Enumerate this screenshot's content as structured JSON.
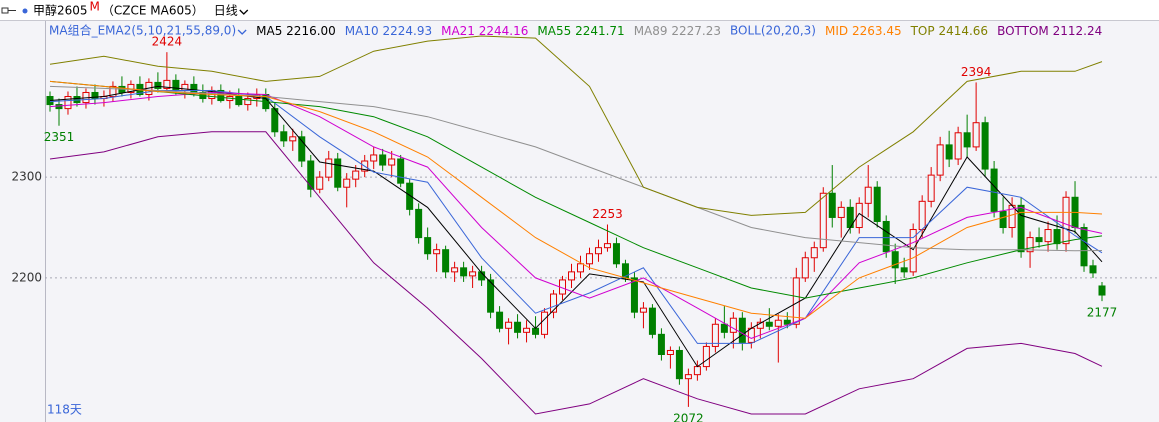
{
  "chart_data": {
    "type": "candlestick",
    "header": {
      "name": "甲醇2605",
      "mark": "M",
      "code": "（CZCE MA605）",
      "period": "日线"
    },
    "indicator_labels": [
      "MA组合_EMA2(5,10,21,55,89,0)",
      "BOLL(20,20,3)"
    ],
    "range_label": "118天",
    "ylim": [
      2059,
      2446
    ],
    "yticks": [
      2200,
      2300
    ],
    "grid": true,
    "up_color": "#e00000",
    "down_color": "#008000",
    "ohlc": [
      [
        2380,
        2385,
        2365,
        2372
      ],
      [
        2372,
        2378,
        2351,
        2368
      ],
      [
        2368,
        2385,
        2362,
        2380
      ],
      [
        2380,
        2390,
        2370,
        2374
      ],
      [
        2374,
        2388,
        2368,
        2384
      ],
      [
        2384,
        2392,
        2372,
        2378
      ],
      [
        2378,
        2386,
        2370,
        2380
      ],
      [
        2380,
        2395,
        2375,
        2390
      ],
      [
        2390,
        2400,
        2380,
        2384
      ],
      [
        2384,
        2396,
        2378,
        2392
      ],
      [
        2392,
        2400,
        2380,
        2382
      ],
      [
        2382,
        2398,
        2376,
        2394
      ],
      [
        2394,
        2404,
        2384,
        2388
      ],
      [
        2388,
        2424,
        2385,
        2396
      ],
      [
        2396,
        2402,
        2382,
        2386
      ],
      [
        2386,
        2396,
        2378,
        2392
      ],
      [
        2392,
        2400,
        2380,
        2384
      ],
      [
        2384,
        2392,
        2374,
        2378
      ],
      [
        2378,
        2390,
        2372,
        2386
      ],
      [
        2386,
        2392,
        2374,
        2376
      ],
      [
        2376,
        2386,
        2368,
        2380
      ],
      [
        2380,
        2388,
        2370,
        2372
      ],
      [
        2372,
        2384,
        2366,
        2378
      ],
      [
        2378,
        2388,
        2370,
        2382
      ],
      [
        2382,
        2388,
        2365,
        2368
      ],
      [
        2368,
        2374,
        2340,
        2345
      ],
      [
        2345,
        2352,
        2330,
        2336
      ],
      [
        2336,
        2348,
        2326,
        2340
      ],
      [
        2340,
        2346,
        2310,
        2316
      ],
      [
        2316,
        2322,
        2280,
        2288
      ],
      [
        2288,
        2306,
        2284,
        2300
      ],
      [
        2300,
        2326,
        2296,
        2318
      ],
      [
        2318,
        2324,
        2286,
        2290
      ],
      [
        2290,
        2304,
        2270,
        2298
      ],
      [
        2298,
        2312,
        2290,
        2306
      ],
      [
        2306,
        2322,
        2300,
        2316
      ],
      [
        2316,
        2330,
        2308,
        2322
      ],
      [
        2322,
        2328,
        2306,
        2312
      ],
      [
        2312,
        2326,
        2300,
        2318
      ],
      [
        2318,
        2322,
        2290,
        2294
      ],
      [
        2294,
        2298,
        2262,
        2268
      ],
      [
        2268,
        2274,
        2234,
        2240
      ],
      [
        2240,
        2250,
        2218,
        2224
      ],
      [
        2224,
        2234,
        2206,
        2228
      ],
      [
        2228,
        2232,
        2200,
        2206
      ],
      [
        2206,
        2216,
        2196,
        2210
      ],
      [
        2210,
        2216,
        2196,
        2202
      ],
      [
        2202,
        2212,
        2190,
        2206
      ],
      [
        2206,
        2212,
        2192,
        2198
      ],
      [
        2198,
        2204,
        2160,
        2166
      ],
      [
        2166,
        2172,
        2146,
        2150
      ],
      [
        2150,
        2160,
        2134,
        2156
      ],
      [
        2156,
        2164,
        2140,
        2146
      ],
      [
        2146,
        2158,
        2136,
        2150
      ],
      [
        2150,
        2162,
        2140,
        2144
      ],
      [
        2144,
        2170,
        2140,
        2166
      ],
      [
        2166,
        2188,
        2160,
        2184
      ],
      [
        2184,
        2202,
        2178,
        2198
      ],
      [
        2198,
        2214,
        2190,
        2206
      ],
      [
        2206,
        2222,
        2200,
        2214
      ],
      [
        2214,
        2230,
        2208,
        2224
      ],
      [
        2224,
        2238,
        2216,
        2230
      ],
      [
        2230,
        2253,
        2226,
        2234
      ],
      [
        2234,
        2240,
        2210,
        2214
      ],
      [
        2214,
        2218,
        2196,
        2200
      ],
      [
        2200,
        2206,
        2160,
        2166
      ],
      [
        2166,
        2176,
        2150,
        2170
      ],
      [
        2170,
        2174,
        2140,
        2144
      ],
      [
        2144,
        2150,
        2118,
        2124
      ],
      [
        2124,
        2132,
        2110,
        2128
      ],
      [
        2128,
        2132,
        2094,
        2100
      ],
      [
        2100,
        2110,
        2072,
        2104
      ],
      [
        2104,
        2118,
        2098,
        2112
      ],
      [
        2112,
        2136,
        2108,
        2132
      ],
      [
        2132,
        2160,
        2126,
        2154
      ],
      [
        2154,
        2172,
        2140,
        2146
      ],
      [
        2146,
        2166,
        2130,
        2160
      ],
      [
        2160,
        2166,
        2128,
        2136
      ],
      [
        2136,
        2156,
        2130,
        2150
      ],
      [
        2150,
        2160,
        2140,
        2156
      ],
      [
        2156,
        2170,
        2148,
        2152
      ],
      [
        2152,
        2164,
        2116,
        2158
      ],
      [
        2158,
        2166,
        2150,
        2154
      ],
      [
        2154,
        2210,
        2150,
        2200
      ],
      [
        2200,
        2226,
        2196,
        2220
      ],
      [
        2220,
        2236,
        2206,
        2230
      ],
      [
        2230,
        2290,
        2226,
        2284
      ],
      [
        2284,
        2312,
        2250,
        2260
      ],
      [
        2260,
        2276,
        2240,
        2270
      ],
      [
        2270,
        2278,
        2244,
        2250
      ],
      [
        2250,
        2280,
        2244,
        2274
      ],
      [
        2274,
        2312,
        2260,
        2290
      ],
      [
        2290,
        2296,
        2250,
        2256
      ],
      [
        2256,
        2262,
        2220,
        2226
      ],
      [
        2226,
        2234,
        2194,
        2210
      ],
      [
        2210,
        2220,
        2200,
        2206
      ],
      [
        2206,
        2254,
        2202,
        2248
      ],
      [
        2248,
        2282,
        2240,
        2276
      ],
      [
        2276,
        2310,
        2270,
        2302
      ],
      [
        2302,
        2340,
        2296,
        2332
      ],
      [
        2332,
        2346,
        2310,
        2318
      ],
      [
        2318,
        2350,
        2312,
        2344
      ],
      [
        2344,
        2362,
        2320,
        2330
      ],
      [
        2330,
        2394,
        2326,
        2354
      ],
      [
        2354,
        2360,
        2300,
        2308
      ],
      [
        2308,
        2316,
        2260,
        2266
      ],
      [
        2266,
        2280,
        2244,
        2250
      ],
      [
        2250,
        2280,
        2240,
        2272
      ],
      [
        2272,
        2280,
        2220,
        2226
      ],
      [
        2226,
        2246,
        2210,
        2240
      ],
      [
        2240,
        2250,
        2230,
        2236
      ],
      [
        2236,
        2256,
        2226,
        2248
      ],
      [
        2248,
        2262,
        2228,
        2234
      ],
      [
        2234,
        2286,
        2226,
        2280
      ],
      [
        2280,
        2296,
        2244,
        2250
      ],
      [
        2250,
        2254,
        2206,
        2212
      ],
      [
        2212,
        2218,
        2200,
        2205
      ],
      [
        2192,
        2196,
        2177,
        2183
      ]
    ],
    "lines": [
      {
        "name": "MA5",
        "value_label": "2216.00",
        "color": "#000000",
        "x": [
          0,
          6,
          12,
          18,
          24,
          30,
          36,
          42,
          48,
          54,
          60,
          66,
          72,
          78,
          84,
          90,
          96,
          102,
          108,
          114,
          117
        ],
        "values": [
          2376,
          2380,
          2390,
          2385,
          2378,
          2315,
          2306,
          2270,
          2205,
          2150,
          2204,
          2196,
          2112,
          2150,
          2180,
          2264,
          2228,
          2320,
          2262,
          2246,
          2216
        ]
      },
      {
        "name": "MA10",
        "value_label": "2224.93",
        "color": "#3a66d8",
        "x": [
          0,
          6,
          12,
          18,
          24,
          30,
          36,
          42,
          48,
          54,
          60,
          66,
          72,
          78,
          84,
          90,
          96,
          102,
          108,
          114,
          117
        ],
        "values": [
          2375,
          2378,
          2386,
          2386,
          2380,
          2340,
          2305,
          2295,
          2220,
          2165,
          2185,
          2210,
          2135,
          2135,
          2160,
          2240,
          2240,
          2290,
          2280,
          2242,
          2224.93
        ]
      },
      {
        "name": "MA21",
        "value_label": "2244.16",
        "color": "#d000d0",
        "x": [
          0,
          6,
          12,
          18,
          24,
          30,
          36,
          42,
          48,
          54,
          60,
          66,
          72,
          78,
          84,
          90,
          96,
          102,
          108,
          114,
          117
        ],
        "values": [
          2370,
          2374,
          2380,
          2384,
          2382,
          2360,
          2330,
          2310,
          2250,
          2200,
          2180,
          2200,
          2170,
          2140,
          2160,
          2215,
          2235,
          2260,
          2270,
          2250,
          2244.16
        ]
      },
      {
        "name": "MA55",
        "value_label": "2241.71",
        "color": "#008a00",
        "x": [
          0,
          6,
          12,
          18,
          24,
          30,
          36,
          42,
          48,
          54,
          60,
          66,
          72,
          78,
          84,
          90,
          96,
          102,
          108,
          114,
          117
        ],
        "values": [
          2395,
          2390,
          2385,
          2380,
          2375,
          2370,
          2360,
          2340,
          2310,
          2280,
          2255,
          2230,
          2210,
          2190,
          2180,
          2190,
          2200,
          2215,
          2228,
          2238,
          2241.71
        ]
      },
      {
        "name": "MA89",
        "value_label": "2227.23",
        "color": "#909090",
        "x": [
          0,
          6,
          12,
          18,
          24,
          30,
          36,
          42,
          48,
          54,
          60,
          66,
          72,
          78,
          84,
          90,
          96,
          102,
          108,
          114,
          117
        ],
        "values": [
          2390,
          2388,
          2386,
          2383,
          2380,
          2375,
          2370,
          2360,
          2345,
          2330,
          2310,
          2290,
          2270,
          2250,
          2240,
          2235,
          2230,
          2228,
          2228,
          2227,
          2227.23
        ]
      },
      {
        "name": "MID",
        "value_label": "2263.45",
        "color": "#ff8000",
        "x": [
          0,
          6,
          12,
          18,
          24,
          30,
          36,
          42,
          48,
          54,
          60,
          66,
          72,
          78,
          84,
          90,
          96,
          102,
          108,
          114,
          117
        ],
        "values": [
          2395,
          2390,
          2385,
          2382,
          2380,
          2365,
          2345,
          2320,
          2280,
          2240,
          2210,
          2195,
          2180,
          2165,
          2160,
          2200,
          2220,
          2250,
          2265,
          2265,
          2263.45
        ]
      },
      {
        "name": "TOP",
        "value_label": "2414.66",
        "color": "#808000",
        "x": [
          0,
          6,
          12,
          18,
          24,
          30,
          36,
          42,
          48,
          54,
          60,
          66,
          72,
          78,
          84,
          90,
          96,
          102,
          108,
          114,
          117
        ],
        "values": [
          2412,
          2420,
          2410,
          2405,
          2395,
          2400,
          2425,
          2435,
          2440,
          2438,
          2390,
          2290,
          2270,
          2262,
          2265,
          2310,
          2345,
          2395,
          2405,
          2405,
          2414.66
        ]
      },
      {
        "name": "BOTTOM",
        "value_label": "2112.24",
        "color": "#800080",
        "x": [
          0,
          6,
          12,
          18,
          24,
          30,
          36,
          42,
          48,
          54,
          60,
          66,
          72,
          78,
          84,
          90,
          96,
          102,
          108,
          114,
          117
        ],
        "values": [
          2318,
          2325,
          2340,
          2345,
          2345,
          2280,
          2215,
          2170,
          2120,
          2065,
          2075,
          2100,
          2080,
          2065,
          2065,
          2090,
          2100,
          2130,
          2135,
          2125,
          2112.24
        ]
      }
    ],
    "annotations": [
      {
        "x": 13,
        "y": 2424
      },
      {
        "x": 1,
        "y": 2351
      },
      {
        "x": 62,
        "y": 2253
      },
      {
        "x": 71,
        "y": 2072
      },
      {
        "x": 103,
        "y": 2394
      },
      {
        "x": 117,
        "y": 2177
      }
    ]
  }
}
